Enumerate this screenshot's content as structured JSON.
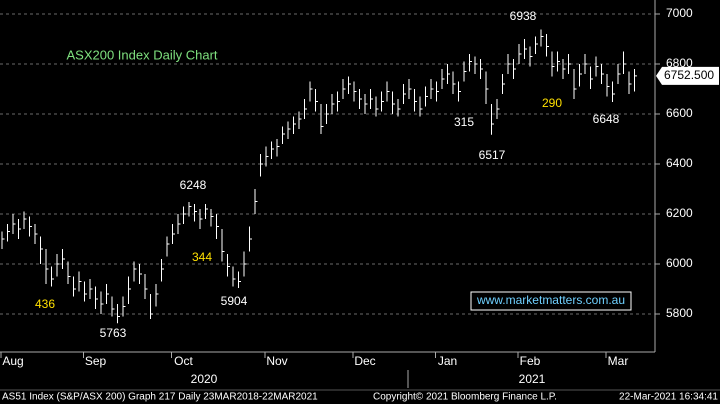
{
  "chart_data": {
    "type": "ohlc",
    "title": "ASX200 Index Daily Chart",
    "website": "www.marketmatters.com.au",
    "last_price_label": "6752.500",
    "annotations": [
      "436",
      "5763",
      "6248",
      "344",
      "5904",
      "315",
      "6517",
      "6938",
      "290",
      "6648"
    ],
    "years": [
      "2020",
      "2021"
    ],
    "footer": [
      "AS51 Index (S&P/ASX 200) Graph 217  Daily 23MAR2018-22MAR2021",
      "Copyright© 2021 Bloomberg Finance L.P.",
      "22-Mar-2021 16:34:41"
    ],
    "categories": [
      null,
      null,
      "Aug",
      null,
      null,
      null,
      null,
      null,
      null,
      null,
      null,
      null,
      null,
      null,
      null,
      null,
      null,
      "Sep",
      null,
      null,
      null,
      null,
      null,
      null,
      null,
      null,
      null,
      null,
      null,
      null,
      null,
      null,
      null,
      "Oct",
      null,
      null,
      null,
      null,
      null,
      null,
      null,
      null,
      null,
      null,
      null,
      null,
      null,
      null,
      null,
      null,
      "Nov",
      null,
      null,
      null,
      null,
      null,
      null,
      null,
      null,
      null,
      null,
      null,
      null,
      null,
      null,
      null,
      "Dec",
      null,
      null,
      null,
      null,
      null,
      null,
      null,
      null,
      null,
      null,
      null,
      null,
      null,
      null,
      "Jan",
      null,
      null,
      null,
      null,
      null,
      null,
      null,
      null,
      null,
      null,
      null,
      null,
      null,
      null,
      "Feb",
      null,
      null,
      null,
      null,
      null,
      null,
      null,
      null,
      null,
      null,
      null,
      null,
      null,
      null,
      null,
      "Mar",
      null,
      null,
      null
    ],
    "high": [
      6130,
      6160,
      6200,
      6180,
      6210,
      6190,
      6160,
      6110,
      6060,
      5990,
      6040,
      6060,
      6010,
      5950,
      5970,
      5930,
      5940,
      5910,
      5890,
      5920,
      5870,
      5840,
      5870,
      5950,
      6010,
      6000,
      5960,
      5880,
      5920,
      6020,
      6110,
      6160,
      6200,
      6230,
      6248,
      6240,
      6220,
      6240,
      6220,
      6200,
      6140,
      6040,
      5990,
      5970,
      6050,
      6150,
      6300,
      6440,
      6470,
      6490,
      6500,
      6550,
      6570,
      6590,
      6610,
      6660,
      6730,
      6700,
      6640,
      6640,
      6680,
      6690,
      6740,
      6750,
      6730,
      6700,
      6680,
      6700,
      6670,
      6690,
      6730,
      6690,
      6660,
      6720,
      6740,
      6700,
      6670,
      6710,
      6740,
      6730,
      6780,
      6800,
      6770,
      6730,
      6810,
      6840,
      6830,
      6820,
      6770,
      6640,
      6660,
      6760,
      6840,
      6820,
      6880,
      6900,
      6870,
      6910,
      6938,
      6920,
      6850,
      6850,
      6820,
      6840,
      6780,
      6800,
      6840,
      6790,
      6830,
      6800,
      6760,
      6730,
      6800,
      6850,
      6770,
      6780
    ],
    "low": [
      6060,
      6090,
      6120,
      6100,
      6140,
      6110,
      6080,
      6000,
      5920,
      5910,
      5950,
      5980,
      5920,
      5870,
      5890,
      5850,
      5860,
      5820,
      5800,
      5840,
      5790,
      5763,
      5790,
      5840,
      5930,
      5920,
      5860,
      5780,
      5830,
      5930,
      6030,
      6080,
      6120,
      6160,
      6190,
      6170,
      6140,
      6180,
      6150,
      6100,
      6010,
      5950,
      5910,
      5904,
      5950,
      6050,
      6200,
      6350,
      6390,
      6420,
      6430,
      6480,
      6500,
      6520,
      6540,
      6580,
      6650,
      6610,
      6520,
      6560,
      6600,
      6610,
      6660,
      6680,
      6650,
      6620,
      6600,
      6620,
      6590,
      6610,
      6650,
      6600,
      6590,
      6640,
      6660,
      6610,
      6590,
      6630,
      6660,
      6650,
      6700,
      6720,
      6680,
      6650,
      6730,
      6770,
      6760,
      6740,
      6640,
      6517,
      6580,
      6680,
      6760,
      6740,
      6800,
      6820,
      6790,
      6840,
      6870,
      6830,
      6750,
      6770,
      6740,
      6760,
      6660,
      6710,
      6760,
      6700,
      6750,
      6720,
      6670,
      6648,
      6720,
      6760,
      6680,
      6690
    ],
    "close": [
      6100,
      6130,
      6160,
      6140,
      6180,
      6150,
      6120,
      6060,
      5980,
      5940,
      6000,
      6020,
      5950,
      5900,
      5930,
      5880,
      5900,
      5860,
      5840,
      5880,
      5820,
      5790,
      5830,
      5900,
      5980,
      5960,
      5900,
      5800,
      5880,
      5980,
      6080,
      6120,
      6160,
      6200,
      6230,
      6210,
      6180,
      6220,
      6190,
      6150,
      6050,
      5990,
      5940,
      5930,
      6000,
      6100,
      6250,
      6400,
      6430,
      6460,
      6470,
      6520,
      6540,
      6560,
      6580,
      6620,
      6700,
      6650,
      6550,
      6600,
      6640,
      6650,
      6700,
      6720,
      6690,
      6660,
      6640,
      6660,
      6620,
      6650,
      6690,
      6640,
      6620,
      6680,
      6700,
      6650,
      6620,
      6670,
      6700,
      6690,
      6740,
      6760,
      6720,
      6690,
      6770,
      6810,
      6800,
      6780,
      6700,
      6560,
      6620,
      6720,
      6800,
      6780,
      6840,
      6860,
      6830,
      6880,
      6910,
      6870,
      6790,
      6810,
      6780,
      6800,
      6700,
      6760,
      6800,
      6740,
      6790,
      6760,
      6710,
      6680,
      6760,
      6800,
      6720,
      6752.5
    ],
    "color": "#ffffff",
    "ylim": [
      5648,
      7056
    ],
    "yticks": [
      5800,
      6000,
      6200,
      6400,
      6600,
      6800,
      7000
    ],
    "grid": true
  }
}
